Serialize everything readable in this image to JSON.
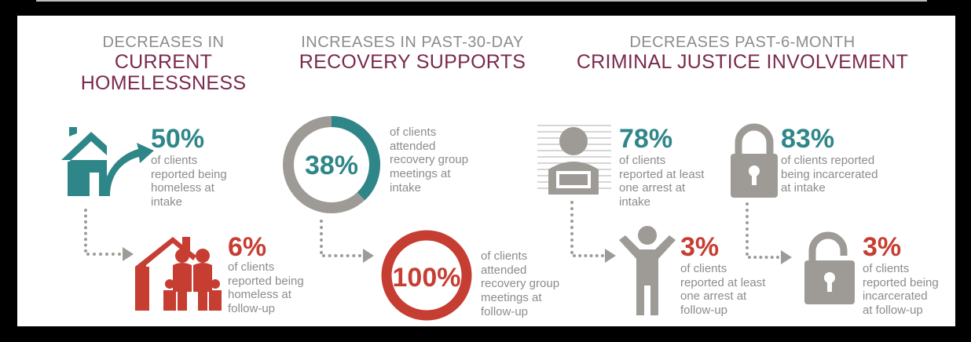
{
  "sections": {
    "homeless": {
      "sub": "DECREASES IN",
      "main_1": "CURRENT",
      "main_2": "HOMELESSNESS"
    },
    "recovery": {
      "sub": "INCREASES IN PAST-30-DAY",
      "main_1": "RECOVERY SUPPORTS"
    },
    "justice": {
      "sub": "DECREASES PAST-6-MONTH",
      "main_1": "CRIMINAL JUSTICE INVOLVEMENT"
    }
  },
  "stats": {
    "homeless_intake": {
      "value": "50%",
      "lines": [
        "of clients",
        "reported being",
        "homeless at",
        "intake"
      ]
    },
    "homeless_followup": {
      "value": "6%",
      "lines": [
        "of clients",
        "reported being",
        "homeless at",
        "follow-up"
      ]
    },
    "recovery_intake": {
      "value": "38%",
      "lines": [
        "of clients",
        "attended",
        "recovery group",
        "meetings at",
        "intake"
      ]
    },
    "recovery_followup": {
      "value": "100%",
      "lines": [
        "of clients",
        "attended",
        "recovery group",
        "meetings at",
        "follow-up"
      ]
    },
    "arrest_intake": {
      "value": "78%",
      "lines": [
        "of clients",
        "reported at least",
        "one arrest at",
        "intake"
      ]
    },
    "arrest_followup": {
      "value": "3%",
      "lines": [
        "of clients",
        "reported at least",
        "one arrest at",
        "follow-up"
      ]
    },
    "incarcerated_intake": {
      "value": "83%",
      "lines": [
        "of clients reported",
        "being incarcerated",
        "at intake"
      ]
    },
    "incarcerated_followup": {
      "value": "3%",
      "lines": [
        "of clients",
        "reported being",
        "incarcerated",
        "at follow-up"
      ]
    }
  },
  "rings": {
    "intake_fraction": 0.38,
    "followup_fraction": 1.0
  },
  "colors": {
    "teal": "#2f8688",
    "red": "#c63d32",
    "gray": "#9e9b96",
    "maroon": "#7b2a4d",
    "text_gray": "#8c8c8c"
  },
  "icons": [
    "house-arrow-icon",
    "family-house-icon",
    "mugshot-icon",
    "raised-arms-person-icon",
    "locked-padlock-icon",
    "unlocked-padlock-icon"
  ]
}
